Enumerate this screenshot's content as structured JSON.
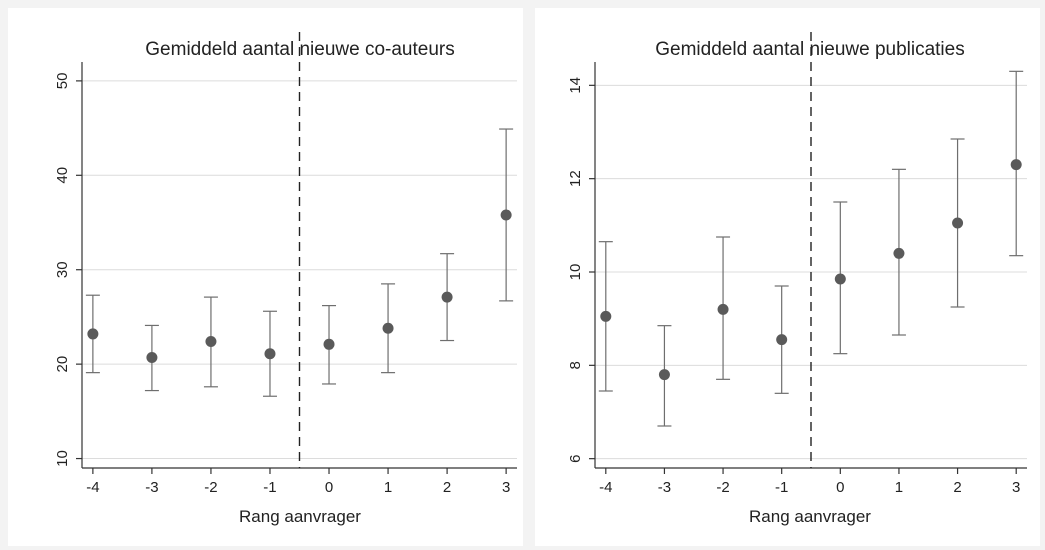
{
  "chart_data": [
    {
      "type": "scatter",
      "title": "Gemiddeld aantal nieuwe co-auteurs",
      "xlabel": "Rang aanvrager",
      "ylabel": "",
      "x": [
        -4,
        -3,
        -2,
        -1,
        0,
        1,
        2,
        3
      ],
      "x_ticks": [
        "-4",
        "-3",
        "-2",
        "-1",
        "0",
        "1",
        "2",
        "3"
      ],
      "y": [
        23.2,
        20.7,
        22.4,
        21.1,
        22.1,
        23.8,
        27.1,
        35.8
      ],
      "ci_low": [
        19.1,
        17.2,
        17.6,
        16.6,
        17.9,
        19.1,
        22.5,
        26.7
      ],
      "ci_high": [
        27.3,
        24.1,
        27.1,
        25.6,
        26.2,
        28.5,
        31.7,
        44.9
      ],
      "ylim": [
        9,
        52
      ],
      "y_ticks": [
        "10",
        "20",
        "30",
        "40",
        "50"
      ],
      "cutoff_x": -0.5,
      "grid": true,
      "error_bars": true
    },
    {
      "type": "scatter",
      "title": "Gemiddeld aantal nieuwe publicaties",
      "xlabel": "Rang aanvrager",
      "ylabel": "",
      "x": [
        -4,
        -3,
        -2,
        -1,
        0,
        1,
        2,
        3
      ],
      "x_ticks": [
        "-4",
        "-3",
        "-2",
        "-1",
        "0",
        "1",
        "2",
        "3"
      ],
      "y": [
        9.05,
        7.8,
        9.2,
        8.55,
        9.85,
        10.4,
        11.05,
        12.3
      ],
      "ci_low": [
        7.45,
        6.7,
        7.7,
        7.4,
        8.25,
        8.65,
        9.25,
        10.35
      ],
      "ci_high": [
        10.65,
        8.85,
        10.75,
        9.7,
        11.5,
        12.2,
        12.85,
        14.3
      ],
      "ylim": [
        5.8,
        14.5
      ],
      "y_ticks": [
        "6",
        "8",
        "10",
        "12",
        "14"
      ],
      "cutoff_x": -0.5,
      "grid": true,
      "error_bars": true
    }
  ]
}
